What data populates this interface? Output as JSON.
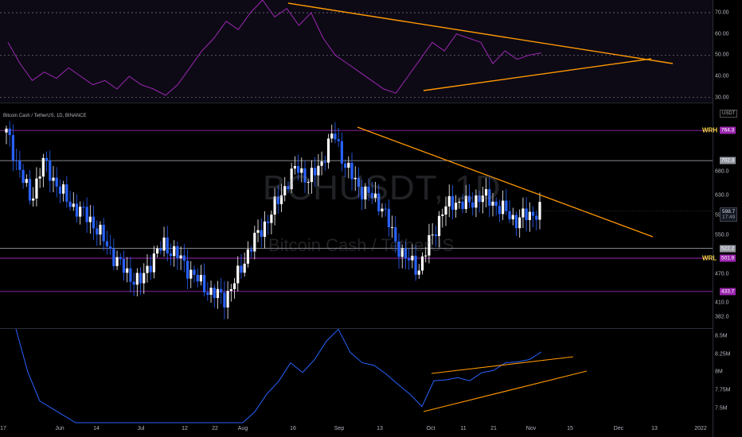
{
  "chart": {
    "symbol_label": "Bitcoin Cash / TetherUS, 1D, BINANCE",
    "watermark_main": "BCHUSDT, 1D",
    "watermark_sub": "Bitcoin Cash / TetherUS",
    "quote_tag": "USDT"
  },
  "rsi_axis": [
    "70.00",
    "60.00",
    "50.00",
    "40.00",
    "30.00"
  ],
  "price_axis": [
    "680.0",
    "630.0",
    "590.0",
    "550.0",
    "470.0",
    "410.0",
    "382.0"
  ],
  "volume_axis": [
    "8.5M",
    "8.25M",
    "8M",
    "7.75M",
    "7.5M"
  ],
  "time_axis": [
    "17",
    "Jun",
    "14",
    "Jul",
    "12",
    "22",
    "Aug",
    "16",
    "Sep",
    "13",
    "Oct",
    "11",
    "21",
    "Nov",
    "15",
    "Dec",
    "13",
    "2022"
  ],
  "levels": [
    {
      "label": "WRH",
      "value": "764.3",
      "color": "#9c27b0"
    },
    {
      "label": "",
      "value": "702.3",
      "color": "#9598a1"
    },
    {
      "label": "",
      "value": "522.2",
      "color": "#9598a1"
    },
    {
      "label": "WRL",
      "value": "501.9",
      "color": "#9c27b0"
    },
    {
      "label": "",
      "value": "433.7",
      "color": "#9c27b0"
    }
  ],
  "last_price": {
    "value": "598.7",
    "countdown": "17:49"
  },
  "colors": {
    "up": "#ffffff",
    "down": "#2962ff",
    "rsi_line": "#9c27b0",
    "volume_line": "#2962ff",
    "trendline": "#ff9800",
    "level_label": "#f5d442"
  },
  "chart_data": [
    {
      "type": "line",
      "title": "",
      "ylim": [
        28,
        76
      ],
      "series": [
        {
          "values": [
            56,
            46,
            38,
            42,
            39,
            44,
            40,
            36,
            38,
            34,
            40,
            36,
            34,
            31,
            36,
            44,
            52,
            58,
            66,
            62,
            70,
            76,
            68,
            72,
            64,
            70,
            58,
            50,
            46,
            42,
            38,
            34,
            32,
            40,
            48,
            56,
            52,
            60,
            58,
            56,
            46,
            52,
            48,
            50,
            51
          ]
        }
      ]
    },
    {
      "type": "line",
      "title": "",
      "ylim": [
        360,
        820
      ],
      "series": [
        {
          "values": [
            760,
            690,
            620,
            700,
            660,
            620,
            600,
            580,
            540,
            500,
            470,
            450,
            500,
            530,
            510,
            480,
            450,
            430,
            420,
            460,
            520,
            560,
            600,
            650,
            690,
            660,
            700,
            760,
            690,
            650,
            630,
            610,
            540,
            500,
            480,
            540,
            600,
            620,
            610,
            630,
            620,
            600,
            580,
            590,
            600
          ]
        }
      ]
    },
    {
      "type": "line",
      "title": "",
      "ylim": [
        7.3,
        8.6
      ],
      "series": [
        {
          "values": [
            8.6,
            8.0,
            7.6,
            7.5,
            7.4,
            7.3,
            7.3,
            7.3,
            7.3,
            7.3,
            7.3,
            7.3,
            7.3,
            7.3,
            7.3,
            7.3,
            7.3,
            7.3,
            7.3,
            7.3,
            7.45,
            7.7,
            7.9,
            8.1,
            8.0,
            8.2,
            8.4,
            8.6,
            8.3,
            8.1,
            8.1,
            8.0,
            7.8,
            7.7,
            7.55,
            7.85,
            7.9,
            7.95,
            7.85,
            8.0,
            8.05,
            8.1,
            8.15,
            8.2,
            8.25
          ]
        }
      ]
    }
  ]
}
